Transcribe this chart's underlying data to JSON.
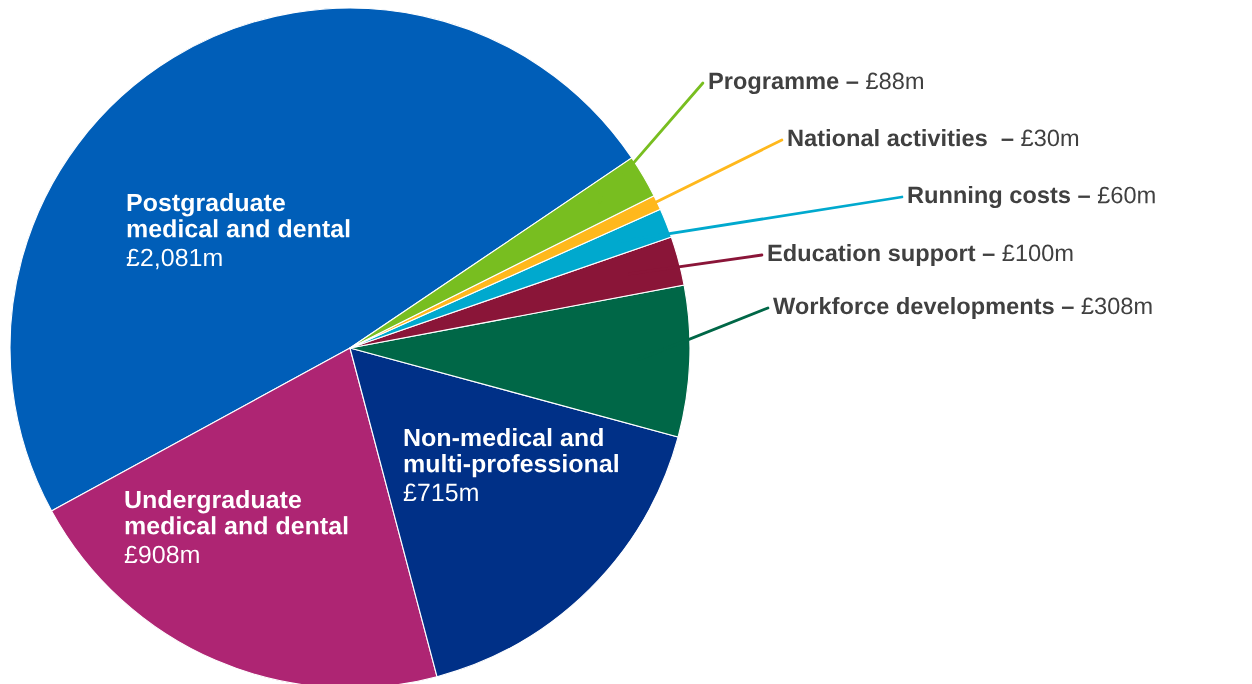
{
  "chart_data": {
    "type": "pie",
    "categories": [
      "Postgraduate medical and dental",
      "Undergraduate medical and dental",
      "Non-medical and multi-professional",
      "Workforce developments –",
      "Education support –",
      "Running costs –",
      "National activities  –",
      "Programme –"
    ],
    "values": [
      2081,
      908,
      715,
      308,
      100,
      60,
      30,
      88
    ],
    "colors": [
      "#005eb8",
      "#ae2573",
      "#003087",
      "#006747",
      "#8a1538",
      "#00a9ce",
      "#ffb81c",
      "#78be20"
    ],
    "value_labels": [
      "£2,081m",
      "£908m",
      "£715m",
      "£308m",
      "£100m",
      "£60m",
      "£30m",
      "£88m"
    ]
  }
}
